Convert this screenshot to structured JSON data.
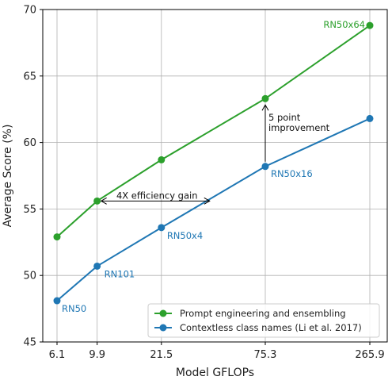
{
  "chart_data": {
    "type": "line",
    "title": "",
    "xlabel": "Model GFLOPs",
    "ylabel": "Average Score (%)",
    "x": [
      6.1,
      9.9,
      21.5,
      75.3,
      265.9
    ],
    "x_tick_labels": [
      "6.1",
      "9.9",
      "21.5",
      "75.3",
      "265.9"
    ],
    "x_scale": "log",
    "ylim": [
      45,
      70
    ],
    "y_ticks": [
      45,
      50,
      55,
      60,
      65,
      70
    ],
    "grid": true,
    "legend_position": "lower-right",
    "series": [
      {
        "name": "Prompt engineering and ensembling",
        "color": "#2ca02c",
        "values": [
          52.9,
          55.6,
          58.7,
          63.3,
          68.8
        ],
        "point_labels": [
          "",
          "",
          "",
          "",
          "RN50x64"
        ]
      },
      {
        "name": "Contextless class names (Li et al. 2017)",
        "color": "#1f77b4",
        "values": [
          48.1,
          50.7,
          53.6,
          58.2,
          61.8
        ],
        "point_labels": [
          "RN50",
          "RN101",
          "RN50x4",
          "RN50x16",
          ""
        ]
      }
    ],
    "annotations": {
      "efficiency": {
        "text": "4X efficiency gain",
        "y": 55.6,
        "x_from": 9.9,
        "x_to": 38.5
      },
      "improvement": {
        "lines": [
          "5 point",
          "improvement"
        ],
        "x": 75.3,
        "y_from": 58.2,
        "y_to": 63.3
      }
    }
  }
}
